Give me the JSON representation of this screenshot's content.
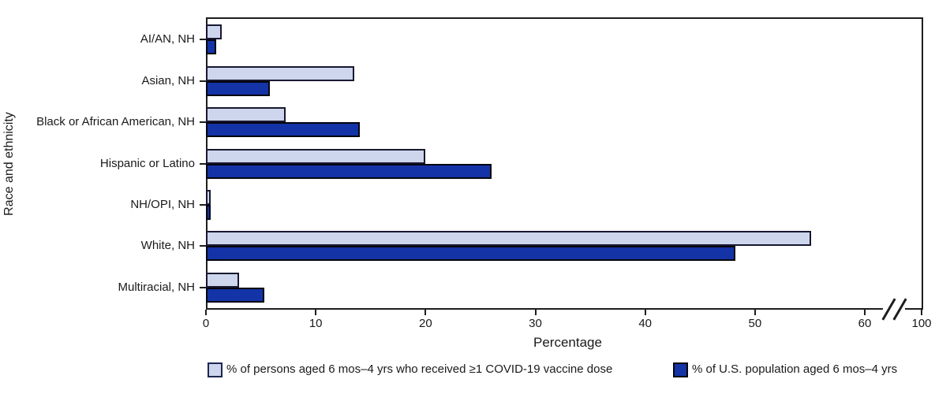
{
  "chart_data": {
    "type": "bar",
    "orientation": "horizontal",
    "title": "",
    "xlabel": "Percentage",
    "ylabel": "Race and ethnicity",
    "categories": [
      "AI/AN, NH",
      "Asian, NH",
      "Black or African American, NH",
      "Hispanic or Latino",
      "NH/OPI, NH",
      "White, NH",
      "Multiracial, NH"
    ],
    "series": [
      {
        "name": "% of persons aged 6 mos–4 yrs who received ≥1 COVID-19 vaccine dose",
        "color": "#cdd6ec",
        "border_color": "#181830",
        "values": [
          1.3,
          13.4,
          7.1,
          19.8,
          0.3,
          55.0,
          2.9
        ]
      },
      {
        "name": "% of U.S. population aged 6 mos–4 yrs",
        "color": "#1433a6",
        "border_color": "#05050e",
        "values": [
          0.8,
          5.7,
          13.9,
          25.9,
          0.3,
          48.1,
          5.2
        ]
      }
    ],
    "x_ticks": [
      0,
      10,
      20,
      30,
      40,
      50,
      60,
      100
    ],
    "x_tick_labels": [
      "0",
      "10",
      "20",
      "30",
      "40",
      "50",
      "60",
      "100"
    ],
    "axis_break_between": [
      60,
      100
    ],
    "xlim": [
      0,
      100
    ],
    "grid": false,
    "legend_position": "bottom"
  },
  "legend": {
    "item1_label": "% of persons aged 6 mos–4 yrs who received ≥1 COVID-19 vaccine dose",
    "item2_label": "% of U.S. population aged 6 mos–4 yrs"
  }
}
